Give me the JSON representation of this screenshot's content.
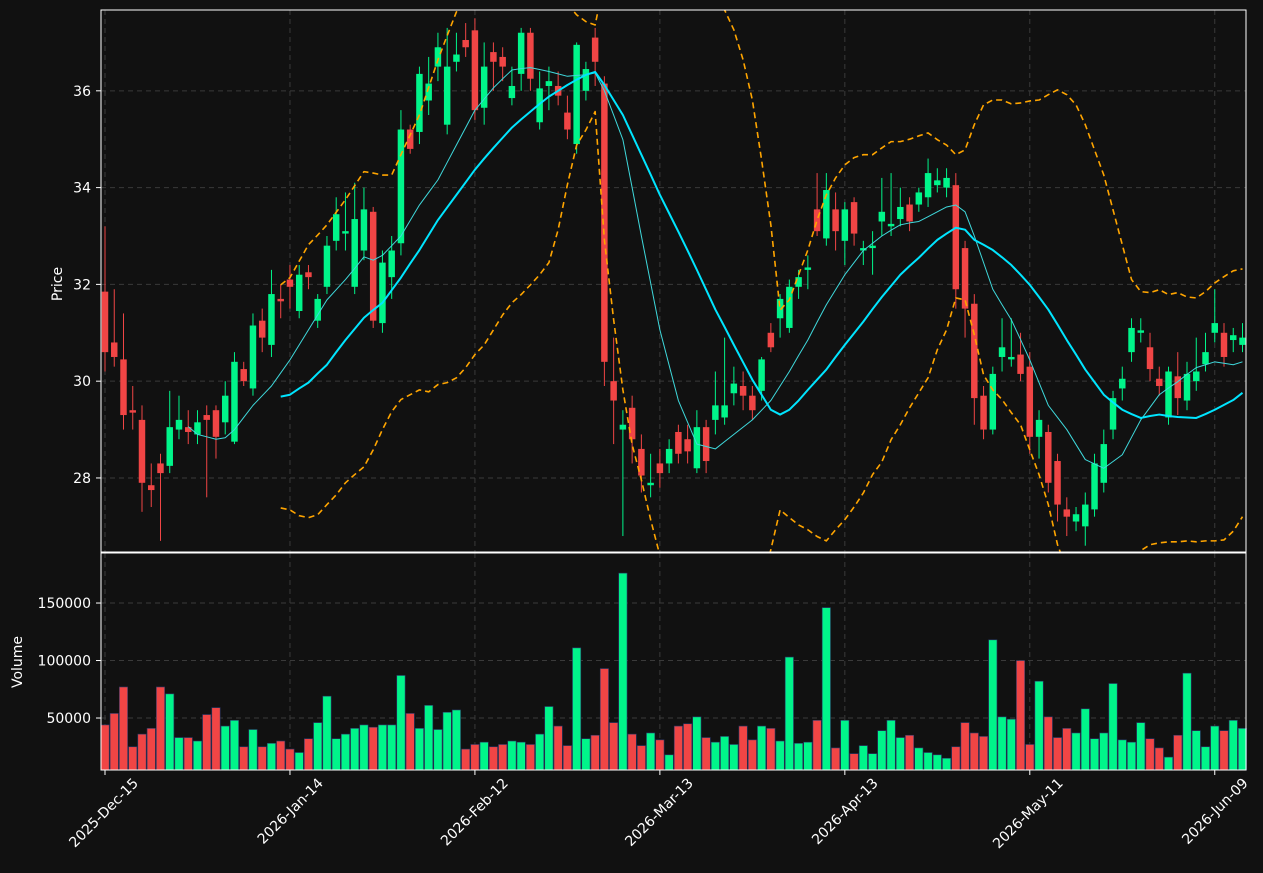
{
  "chart_data": {
    "type": "candlestick",
    "ylabel": "Price",
    "ylim": [
      26.47,
      37.67
    ],
    "yticks": [
      28,
      30,
      32,
      34,
      36
    ],
    "grid": true,
    "up_color": "#00f58a",
    "down_color": "#f04545",
    "categories": [
      "2025-Dec-15",
      null,
      null,
      null,
      null,
      null,
      null,
      null,
      null,
      null,
      null,
      null,
      null,
      null,
      null,
      null,
      null,
      null,
      null,
      null,
      "2026-Jan-14",
      null,
      null,
      null,
      null,
      null,
      null,
      null,
      null,
      null,
      null,
      null,
      null,
      null,
      null,
      null,
      null,
      null,
      null,
      null,
      "2026-Feb-12",
      null,
      null,
      null,
      null,
      null,
      null,
      null,
      null,
      null,
      null,
      null,
      null,
      null,
      null,
      null,
      null,
      null,
      null,
      null,
      "2026-Mar-13",
      null,
      null,
      null,
      null,
      null,
      null,
      null,
      null,
      null,
      null,
      null,
      null,
      null,
      null,
      null,
      null,
      null,
      null,
      null,
      "2026-Apr-13",
      null,
      null,
      null,
      null,
      null,
      null,
      null,
      null,
      null,
      null,
      null,
      null,
      null,
      null,
      null,
      null,
      null,
      null,
      null,
      "2026-May-11",
      null,
      null,
      null,
      null,
      null,
      null,
      null,
      null,
      null,
      null,
      null,
      null,
      null,
      null,
      null,
      null,
      null,
      null,
      null,
      "2026-Jun-09",
      null,
      null,
      null
    ],
    "open": [
      31.85,
      30.8,
      30.45,
      29.4,
      29.2,
      27.85,
      28.3,
      28.25,
      29.0,
      29.05,
      28.9,
      29.3,
      29.4,
      29.15,
      28.75,
      30.25,
      29.85,
      31.25,
      30.75,
      31.7,
      32.1,
      31.45,
      32.25,
      31.25,
      31.95,
      32.9,
      33.05,
      31.95,
      32.7,
      33.5,
      31.2,
      32.15,
      32.85,
      35.2,
      35.15,
      35.8,
      36.5,
      35.3,
      36.6,
      37.05,
      37.25,
      35.65,
      36.8,
      36.7,
      35.85,
      36.35,
      37.2,
      35.35,
      36.1,
      36.1,
      35.55,
      34.9,
      36.0,
      37.1,
      36.15,
      30.0,
      29.0,
      29.45,
      28.6,
      27.85,
      28.3,
      28.3,
      28.95,
      28.8,
      28.2,
      29.05,
      29.2,
      29.25,
      29.75,
      29.9,
      29.7,
      29.8,
      31.0,
      31.3,
      31.1,
      31.95,
      32.3,
      33.55,
      32.95,
      33.55,
      32.9,
      33.7,
      32.7,
      32.75,
      33.3,
      33.2,
      33.35,
      33.65,
      33.65,
      33.8,
      34.05,
      34.0,
      34.05,
      32.75,
      31.6,
      29.7,
      29.0,
      30.5,
      30.45,
      30.55,
      30.3,
      28.85,
      28.95,
      28.35,
      27.35,
      27.1,
      27.0,
      27.35,
      27.9,
      29.0,
      29.85,
      30.6,
      31.0,
      30.7,
      30.05,
      29.25,
      30.1,
      29.6,
      30.0,
      30.35,
      31.0,
      31.0,
      30.85,
      30.75
    ],
    "high": [
      33.2,
      31.9,
      31.4,
      29.9,
      29.5,
      28.3,
      28.5,
      29.8,
      29.7,
      29.4,
      29.4,
      29.5,
      29.5,
      30.0,
      30.6,
      30.4,
      31.4,
      31.5,
      32.3,
      32.0,
      32.4,
      32.4,
      32.4,
      31.8,
      33.0,
      33.8,
      33.9,
      34.1,
      34.0,
      33.6,
      32.7,
      33.0,
      35.6,
      35.3,
      36.5,
      36.7,
      37.2,
      37.3,
      37.2,
      37.4,
      37.5,
      37.0,
      37.0,
      36.9,
      36.5,
      37.3,
      37.3,
      36.4,
      36.5,
      36.4,
      35.9,
      37.0,
      36.6,
      37.3,
      36.3,
      30.9,
      29.4,
      29.7,
      28.9,
      28.5,
      28.6,
      28.8,
      29.1,
      29.1,
      29.4,
      29.2,
      30.2,
      30.9,
      30.3,
      30.2,
      29.9,
      30.5,
      31.2,
      31.8,
      32.1,
      32.3,
      32.6,
      34.3,
      34.3,
      33.9,
      33.7,
      33.8,
      32.9,
      33.1,
      34.2,
      34.3,
      34.0,
      33.8,
      34.0,
      34.6,
      34.4,
      34.4,
      34.3,
      32.9,
      31.8,
      29.9,
      30.3,
      31.3,
      31.3,
      31.0,
      30.6,
      29.4,
      29.1,
      28.5,
      27.6,
      27.4,
      27.7,
      28.5,
      29.0,
      29.8,
      30.3,
      31.3,
      31.3,
      31.0,
      30.3,
      30.3,
      30.6,
      30.4,
      30.9,
      31.0,
      31.9,
      31.2,
      31.1,
      31.2
    ],
    "low": [
      30.2,
      30.3,
      29.0,
      29.0,
      27.3,
      27.4,
      26.7,
      28.1,
      28.8,
      28.7,
      28.7,
      27.6,
      28.4,
      28.9,
      28.7,
      29.9,
      29.7,
      30.6,
      30.5,
      31.3,
      31.5,
      31.3,
      31.9,
      31.1,
      31.8,
      32.7,
      32.7,
      31.8,
      32.5,
      31.1,
      31.0,
      31.7,
      32.6,
      34.7,
      34.9,
      35.5,
      36.2,
      35.1,
      36.4,
      36.7,
      35.4,
      35.3,
      36.0,
      36.2,
      35.7,
      36.0,
      36.0,
      35.2,
      35.6,
      35.7,
      35.0,
      34.7,
      35.8,
      36.1,
      29.9,
      28.7,
      26.8,
      28.3,
      27.7,
      27.6,
      27.8,
      28.1,
      28.3,
      28.3,
      28.1,
      28.1,
      28.9,
      29.1,
      29.5,
      29.4,
      29.2,
      29.6,
      30.6,
      30.9,
      31.0,
      31.7,
      31.9,
      33.0,
      32.8,
      32.7,
      32.4,
      32.8,
      32.4,
      32.2,
      33.0,
      33.0,
      33.2,
      33.1,
      33.5,
      33.6,
      33.9,
      33.8,
      31.5,
      30.9,
      29.1,
      28.8,
      28.9,
      30.2,
      30.3,
      30.0,
      28.5,
      28.4,
      27.7,
      27.1,
      26.8,
      26.9,
      26.6,
      27.2,
      27.7,
      28.8,
      29.6,
      30.4,
      30.8,
      30.0,
      29.7,
      29.1,
      29.3,
      29.4,
      29.8,
      30.2,
      30.8,
      30.3,
      30.6,
      30.6
    ],
    "close": [
      30.6,
      30.5,
      29.3,
      29.35,
      27.9,
      27.75,
      28.1,
      29.05,
      29.2,
      28.95,
      29.15,
      29.2,
      28.85,
      29.7,
      30.4,
      30.0,
      31.15,
      30.9,
      31.8,
      31.65,
      31.95,
      32.2,
      32.15,
      31.7,
      32.8,
      33.45,
      33.1,
      33.35,
      33.55,
      31.25,
      32.45,
      32.7,
      35.2,
      34.8,
      36.35,
      36.15,
      36.9,
      36.5,
      36.75,
      36.9,
      35.6,
      36.5,
      36.6,
      36.5,
      36.1,
      37.2,
      36.25,
      36.05,
      36.2,
      35.9,
      35.2,
      36.95,
      36.45,
      36.6,
      30.4,
      29.6,
      29.1,
      28.8,
      28.05,
      27.9,
      28.1,
      28.6,
      28.5,
      28.55,
      29.05,
      28.35,
      29.5,
      29.5,
      29.95,
      29.7,
      29.4,
      30.45,
      30.7,
      31.7,
      31.95,
      32.15,
      32.35,
      33.1,
      33.95,
      33.1,
      33.55,
      33.05,
      32.75,
      32.8,
      33.5,
      33.25,
      33.6,
      33.3,
      33.9,
      34.3,
      34.15,
      34.2,
      31.9,
      31.5,
      29.65,
      29.0,
      30.15,
      30.7,
      30.5,
      30.15,
      28.85,
      29.2,
      27.9,
      27.45,
      27.2,
      27.25,
      27.45,
      28.3,
      28.7,
      29.65,
      30.05,
      31.1,
      31.05,
      30.25,
      29.9,
      30.2,
      29.65,
      30.15,
      30.2,
      30.6,
      31.2,
      30.5,
      30.95,
      30.9
    ],
    "overlays": [
      {
        "color": "#3fd9dc",
        "width": 1,
        "dashed": false,
        "values": [
          null,
          null,
          null,
          null,
          null,
          null,
          null,
          null,
          null,
          29.06,
          28.9,
          28.85,
          28.8,
          28.83,
          29.0,
          29.25,
          29.5,
          29.7,
          29.9,
          30.17,
          30.44,
          30.75,
          31.06,
          31.37,
          31.68,
          31.89,
          32.1,
          32.33,
          32.57,
          32.5,
          32.6,
          32.8,
          33.0,
          33.32,
          33.64,
          33.9,
          34.16,
          34.52,
          34.88,
          35.24,
          35.6,
          35.83,
          36.06,
          36.25,
          36.43,
          36.46,
          36.48,
          36.44,
          36.4,
          36.35,
          36.3,
          36.32,
          36.33,
          36.37,
          36.0,
          35.5,
          34.99,
          34.0,
          33.0,
          32.03,
          31.06,
          30.33,
          29.6,
          29.15,
          28.7,
          28.65,
          28.6,
          28.75,
          28.9,
          29.05,
          29.2,
          29.4,
          29.6,
          29.9,
          30.2,
          30.53,
          30.85,
          31.22,
          31.58,
          31.89,
          32.2,
          32.45,
          32.7,
          32.85,
          33.0,
          33.12,
          33.23,
          33.27,
          33.3,
          33.4,
          33.5,
          33.6,
          33.64,
          33.5,
          33.0,
          32.45,
          31.9,
          31.58,
          31.27,
          30.86,
          30.44,
          29.97,
          29.5,
          29.25,
          29.0,
          28.69,
          28.38,
          28.29,
          28.2,
          28.34,
          28.48,
          28.84,
          29.2,
          29.46,
          29.72,
          29.86,
          29.99,
          30.14,
          30.28,
          30.34,
          30.4,
          30.37,
          30.34,
          30.4
        ]
      },
      {
        "color": "#00e5ff",
        "width": 2,
        "dashed": false,
        "values": [
          null,
          null,
          null,
          null,
          null,
          null,
          null,
          null,
          null,
          null,
          null,
          null,
          null,
          null,
          null,
          null,
          null,
          null,
          null,
          29.68,
          29.72,
          29.85,
          29.97,
          30.16,
          30.34,
          30.6,
          30.85,
          31.08,
          31.31,
          31.47,
          31.62,
          31.88,
          32.14,
          32.43,
          32.71,
          33.02,
          33.33,
          33.59,
          33.85,
          34.11,
          34.37,
          34.6,
          34.82,
          35.03,
          35.24,
          35.41,
          35.57,
          35.73,
          35.88,
          36.0,
          36.12,
          36.23,
          36.33,
          36.39,
          36.12,
          35.81,
          35.5,
          35.09,
          34.68,
          34.27,
          33.85,
          33.47,
          33.09,
          32.7,
          32.3,
          31.89,
          31.48,
          31.12,
          30.75,
          30.39,
          30.03,
          29.72,
          29.41,
          29.31,
          29.41,
          29.6,
          29.82,
          30.03,
          30.24,
          30.5,
          30.75,
          30.99,
          31.23,
          31.49,
          31.74,
          31.97,
          32.2,
          32.38,
          32.55,
          32.74,
          32.92,
          33.05,
          33.17,
          33.13,
          32.92,
          32.82,
          32.71,
          32.56,
          32.4,
          32.2,
          31.99,
          31.74,
          31.48,
          31.17,
          30.85,
          30.55,
          30.24,
          29.98,
          29.72,
          29.56,
          29.41,
          29.32,
          29.24,
          29.28,
          29.31,
          29.28,
          29.26,
          29.25,
          29.24,
          29.32,
          29.41,
          29.51,
          29.61,
          29.76
        ]
      },
      {
        "color": "#ffa500",
        "width": 1.6,
        "dashed": true,
        "values": [
          null,
          null,
          null,
          null,
          null,
          null,
          null,
          null,
          null,
          null,
          null,
          null,
          null,
          null,
          null,
          null,
          null,
          null,
          null,
          31.99,
          32.14,
          32.48,
          32.82,
          33.02,
          33.23,
          33.49,
          33.75,
          34.04,
          34.33,
          34.3,
          34.26,
          34.26,
          34.68,
          35.09,
          35.5,
          36.07,
          36.64,
          37.14,
          37.63,
          37.9,
          38.2,
          38.3,
          38.4,
          38.35,
          38.3,
          38.2,
          38.1,
          38.0,
          37.9,
          37.85,
          37.8,
          37.57,
          37.43,
          37.36,
          38.3,
          39.0,
          39.5,
          40.0,
          40.3,
          40.5,
          40.5,
          40.4,
          40.2,
          39.8,
          39.3,
          38.8,
          38.3,
          37.67,
          37.26,
          36.64,
          35.81,
          34.57,
          33.23,
          31.47,
          31.68,
          32.2,
          32.71,
          33.33,
          33.85,
          34.2,
          34.47,
          34.62,
          34.68,
          34.68,
          34.82,
          34.95,
          34.95,
          35.0,
          35.07,
          35.13,
          34.99,
          34.88,
          34.68,
          34.78,
          35.3,
          35.71,
          35.81,
          35.81,
          35.73,
          35.75,
          35.79,
          35.81,
          35.92,
          36.02,
          35.92,
          35.71,
          35.3,
          34.78,
          34.26,
          33.54,
          32.82,
          32.1,
          31.85,
          31.83,
          31.89,
          31.79,
          31.83,
          31.74,
          31.72,
          31.85,
          32.03,
          32.16,
          32.28,
          32.32
        ]
      },
      {
        "color": "#ffa500",
        "width": 1.6,
        "dashed": true,
        "values": [
          null,
          null,
          null,
          null,
          null,
          null,
          null,
          null,
          null,
          null,
          null,
          null,
          null,
          null,
          null,
          null,
          null,
          null,
          null,
          27.38,
          27.34,
          27.22,
          27.18,
          27.24,
          27.45,
          27.65,
          27.9,
          28.07,
          28.23,
          28.58,
          29.0,
          29.37,
          29.62,
          29.72,
          29.82,
          29.78,
          29.93,
          29.97,
          30.07,
          30.28,
          30.55,
          30.75,
          31.06,
          31.37,
          31.62,
          31.79,
          31.99,
          32.2,
          32.45,
          33.13,
          34.06,
          34.88,
          35.19,
          35.57,
          32.92,
          31.27,
          29.82,
          28.69,
          27.96,
          27.14,
          26.4,
          26.0,
          25.6,
          25.3,
          25.0,
          24.8,
          24.7,
          24.7,
          24.8,
          25.0,
          25.3,
          25.8,
          26.52,
          27.34,
          27.18,
          27.03,
          26.93,
          26.79,
          26.7,
          26.93,
          27.14,
          27.4,
          27.69,
          28.07,
          28.33,
          28.79,
          29.1,
          29.45,
          29.76,
          30.07,
          30.65,
          31.06,
          31.72,
          31.68,
          30.96,
          30.13,
          29.82,
          29.62,
          29.35,
          29.1,
          28.58,
          28.07,
          27.45,
          26.62,
          26.1,
          25.8,
          25.6,
          25.6,
          25.8,
          26.0,
          26.3,
          26.3,
          26.5,
          26.62,
          26.66,
          26.68,
          26.68,
          26.7,
          26.68,
          26.7,
          26.7,
          26.72,
          26.9,
          27.2
        ]
      }
    ],
    "volume": {
      "ylabel": "Volume",
      "ylim": [
        4800,
        193500
      ],
      "yticks": [
        50000,
        100000,
        150000
      ],
      "values": [
        44000,
        54000,
        77000,
        25000,
        36000,
        41000,
        77000,
        71000,
        33000,
        33000,
        30000,
        53000,
        59000,
        43000,
        48000,
        25000,
        40000,
        25000,
        28000,
        30000,
        23000,
        20000,
        32000,
        46000,
        69000,
        32000,
        36000,
        41000,
        44000,
        42000,
        44000,
        44000,
        87000,
        54000,
        41000,
        61000,
        40000,
        55000,
        57000,
        23000,
        27000,
        29000,
        25000,
        27000,
        30000,
        29000,
        27000,
        36000,
        60000,
        43000,
        26000,
        111000,
        32000,
        35000,
        93000,
        46000,
        176000,
        36000,
        26000,
        37000,
        31000,
        18000,
        43000,
        45000,
        51000,
        33000,
        29000,
        34000,
        27000,
        43000,
        31000,
        43000,
        41000,
        30000,
        103000,
        28000,
        29000,
        48000,
        146000,
        24000,
        48000,
        19000,
        26000,
        19000,
        39000,
        48000,
        33000,
        35000,
        24000,
        20000,
        18000,
        15000,
        25000,
        46000,
        37000,
        34000,
        118000,
        51000,
        49000,
        100000,
        27000,
        82000,
        51000,
        33000,
        41000,
        37000,
        58000,
        32000,
        37000,
        80000,
        31000,
        29000,
        46000,
        32000,
        24000,
        16000,
        35000,
        89000,
        39000,
        25000,
        43000,
        39000,
        48000,
        41000
      ]
    }
  }
}
